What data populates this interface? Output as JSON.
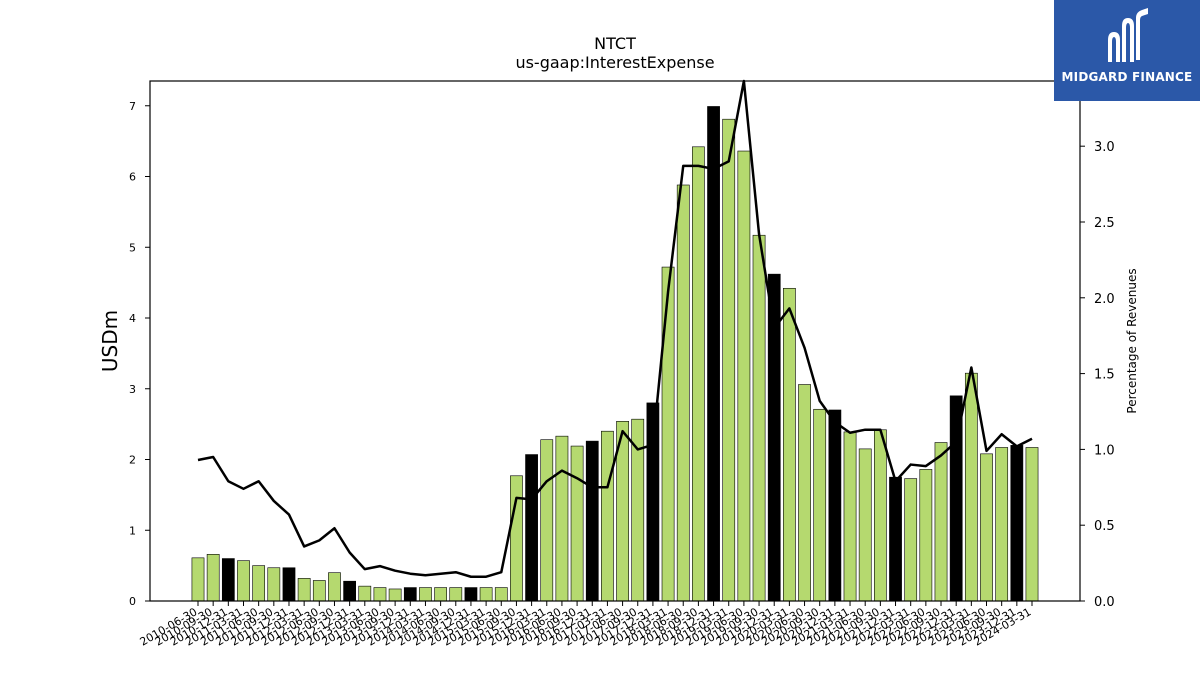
{
  "logo": {
    "text": "MIDGARD FINANCE"
  },
  "colors": {
    "bar_normal": "#b5d96f",
    "bar_highlight": "#000000",
    "line": "#000000",
    "logo_bg": "#2b58a8"
  },
  "chart_data": {
    "type": "bar",
    "title": "NTCT",
    "subtitle": "us-gaap:InterestExpense",
    "ylabel": "USDm",
    "y2label": "Percentage of Revenues",
    "ylim": [
      0,
      7.35
    ],
    "y2lim": [
      0,
      3.43
    ],
    "yticks": [
      "0",
      "1",
      "2",
      "3",
      "4",
      "5",
      "6",
      "7"
    ],
    "y2ticks": [
      "0.0",
      "0.5",
      "1.0",
      "1.5",
      "2.0",
      "2.5",
      "3.0"
    ],
    "grid": false,
    "categories": [
      "2010-06-30",
      "2010-09-30",
      "2010-12-31",
      "2011-03-31",
      "2011-06-30",
      "2011-09-30",
      "2011-12-31",
      "2012-03-31",
      "2012-06-30",
      "2012-09-30",
      "2012-12-31",
      "2013-03-31",
      "2013-06-30",
      "2013-09-30",
      "2013-12-31",
      "2014-03-31",
      "2014-06-30",
      "2014-09-30",
      "2014-12-31",
      "2015-03-31",
      "2015-06-30",
      "2015-09-30",
      "2015-12-31",
      "2016-03-31",
      "2016-06-30",
      "2016-09-30",
      "2016-12-31",
      "2017-03-31",
      "2017-06-30",
      "2017-09-30",
      "2017-12-31",
      "2018-03-31",
      "2018-06-30",
      "2018-09-30",
      "2018-12-31",
      "2019-03-31",
      "2019-06-30",
      "2019-09-30",
      "2019-12-31",
      "2020-03-31",
      "2020-06-30",
      "2020-09-30",
      "2020-12-31",
      "2021-03-31",
      "2021-06-30",
      "2021-09-30",
      "2021-12-31",
      "2022-03-31",
      "2022-06-30",
      "2022-09-30",
      "2022-12-31",
      "2023-03-31",
      "2023-06-30",
      "2023-09-30",
      "2023-12-31",
      "2024-03-31"
    ],
    "series": [
      {
        "type": "bar",
        "axis": "left",
        "values": [
          0.61,
          0.66,
          0.6,
          0.57,
          0.5,
          0.47,
          0.47,
          0.32,
          0.29,
          0.4,
          0.28,
          0.21,
          0.19,
          0.17,
          0.19,
          0.19,
          0.19,
          0.19,
          0.19,
          0.19,
          0.19,
          1.77,
          2.07,
          2.28,
          2.33,
          2.19,
          2.26,
          2.4,
          2.54,
          2.57,
          2.8,
          4.72,
          5.88,
          6.42,
          6.99,
          6.81,
          6.36,
          5.17,
          4.62,
          4.42,
          3.06,
          2.71,
          2.7,
          2.39,
          2.15,
          2.42,
          1.75,
          1.73,
          1.86,
          2.24,
          2.9,
          3.22,
          2.08,
          2.17,
          2.2,
          2.17
        ],
        "highlight": [
          false,
          false,
          true,
          false,
          false,
          false,
          true,
          false,
          false,
          false,
          true,
          false,
          false,
          false,
          true,
          false,
          false,
          false,
          true,
          false,
          false,
          false,
          true,
          false,
          false,
          false,
          true,
          false,
          false,
          false,
          true,
          false,
          false,
          false,
          true,
          false,
          false,
          false,
          true,
          false,
          false,
          false,
          true,
          false,
          false,
          false,
          true,
          false,
          false,
          false,
          true,
          false,
          false,
          false,
          true,
          false
        ]
      },
      {
        "type": "line",
        "axis": "right",
        "values": [
          0.93,
          0.95,
          0.79,
          0.74,
          0.79,
          0.66,
          0.57,
          0.36,
          0.4,
          0.48,
          0.32,
          0.21,
          0.23,
          0.2,
          0.18,
          0.17,
          0.18,
          0.19,
          0.16,
          0.16,
          0.19,
          0.68,
          0.67,
          0.79,
          0.86,
          0.81,
          0.75,
          0.75,
          1.12,
          1.0,
          1.03,
          2.04,
          2.87,
          2.87,
          2.85,
          2.9,
          3.43,
          2.42,
          1.8,
          1.93,
          1.67,
          1.32,
          1.18,
          1.11,
          1.13,
          1.13,
          0.79,
          0.9,
          0.89,
          0.96,
          1.05,
          1.54,
          0.99,
          1.1,
          1.02,
          1.07
        ]
      }
    ]
  }
}
